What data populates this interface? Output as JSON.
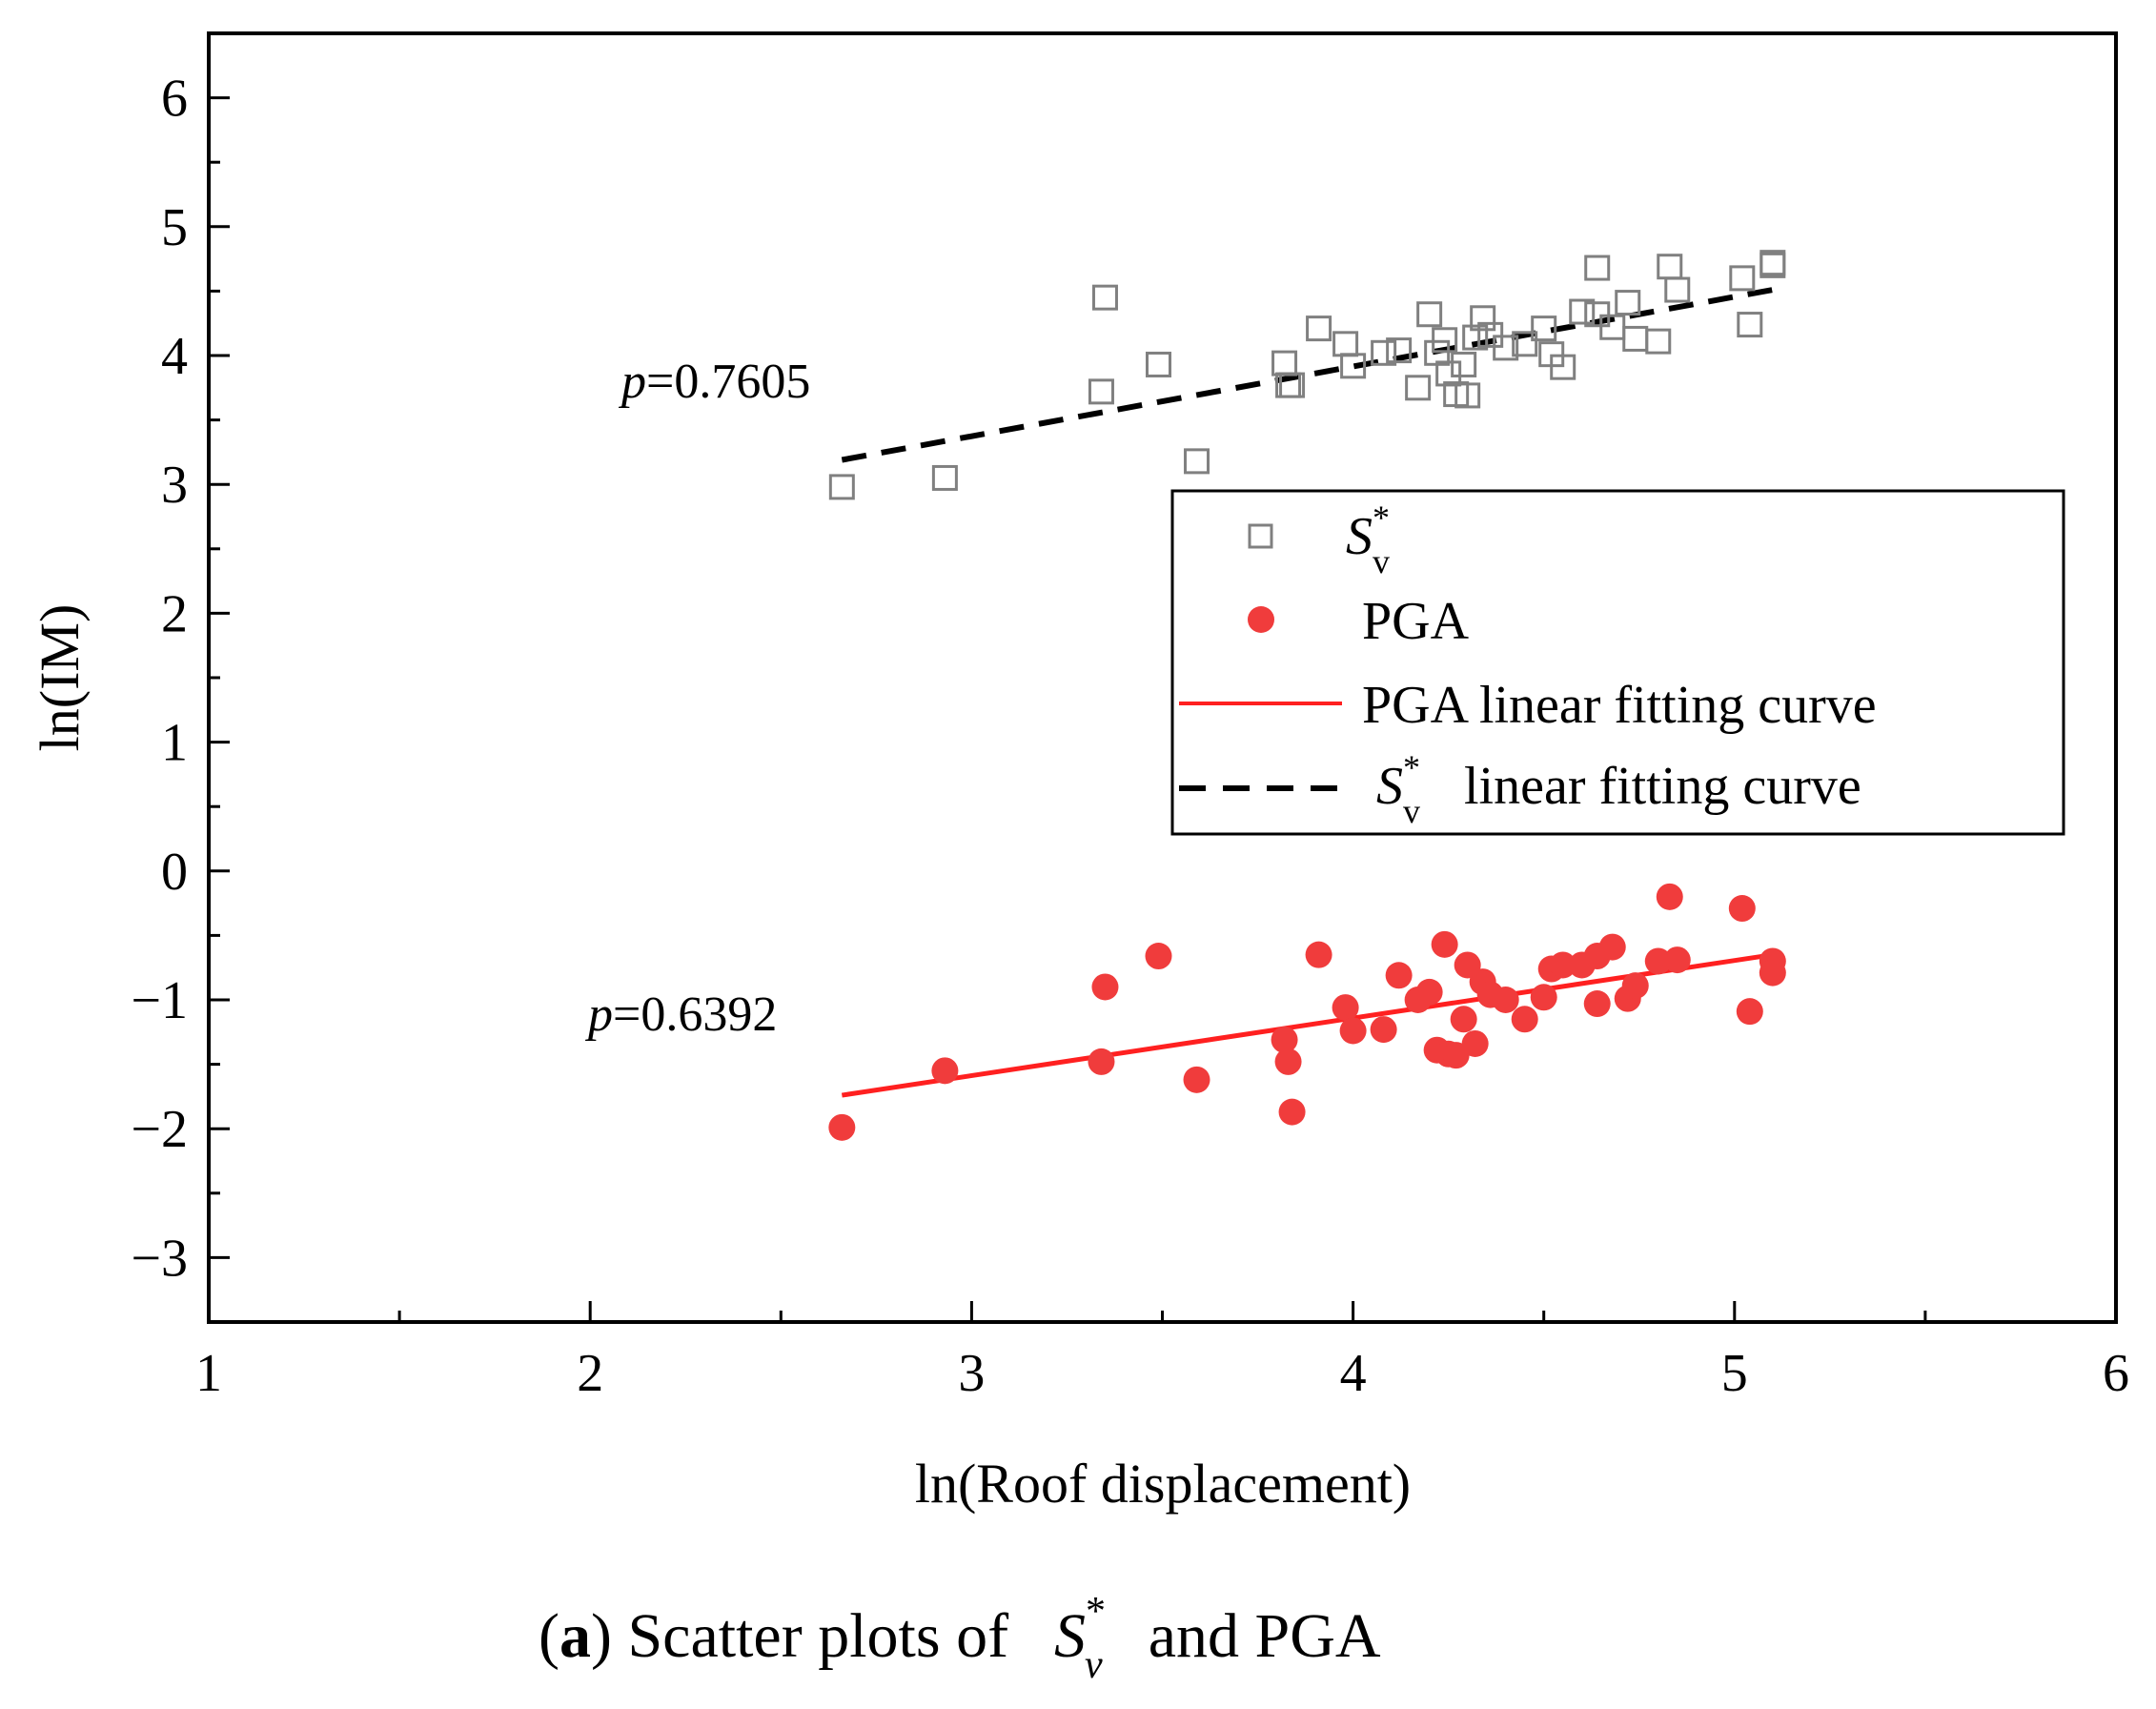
{
  "chart_data": {
    "type": "scatter",
    "xlabel": "ln(Roof displacement)",
    "ylabel": "ln(IM)",
    "xlim": [
      1,
      6
    ],
    "ylim": [
      -3.5,
      6.5
    ],
    "x_ticks": [
      1,
      2,
      3,
      4,
      5,
      6
    ],
    "y_ticks": [
      -3,
      -2,
      -1,
      0,
      1,
      2,
      3,
      4,
      5,
      6
    ],
    "legend_position": "right-middle",
    "series": [
      {
        "name": "Sv*",
        "legend_label": {
          "main": "S",
          "sub": "v",
          "sup": "*"
        },
        "kind": "scatter",
        "marker": "open-square",
        "color": "#808080",
        "points": [
          [
            2.66,
            2.98
          ],
          [
            2.93,
            3.05
          ],
          [
            3.34,
            3.72
          ],
          [
            3.35,
            4.45
          ],
          [
            3.49,
            3.93
          ],
          [
            3.59,
            3.18
          ],
          [
            3.82,
            3.94
          ],
          [
            3.83,
            3.77
          ],
          [
            3.84,
            3.77
          ],
          [
            3.91,
            4.21
          ],
          [
            3.98,
            4.09
          ],
          [
            4.0,
            3.92
          ],
          [
            4.08,
            4.02
          ],
          [
            4.12,
            4.04
          ],
          [
            4.17,
            3.75
          ],
          [
            4.2,
            4.32
          ],
          [
            4.22,
            4.02
          ],
          [
            4.24,
            4.12
          ],
          [
            4.25,
            3.86
          ],
          [
            4.27,
            3.7
          ],
          [
            4.29,
            3.93
          ],
          [
            4.3,
            3.69
          ],
          [
            4.32,
            4.14
          ],
          [
            4.34,
            4.29
          ],
          [
            4.36,
            4.16
          ],
          [
            4.4,
            4.06
          ],
          [
            4.45,
            4.09
          ],
          [
            4.5,
            4.21
          ],
          [
            4.52,
            4.01
          ],
          [
            4.55,
            3.91
          ],
          [
            4.6,
            4.34
          ],
          [
            4.64,
            4.68
          ],
          [
            4.64,
            4.32
          ],
          [
            4.68,
            4.22
          ],
          [
            4.72,
            4.41
          ],
          [
            4.74,
            4.13
          ],
          [
            4.8,
            4.11
          ],
          [
            4.83,
            4.69
          ],
          [
            4.85,
            4.51
          ],
          [
            5.02,
            4.6
          ],
          [
            5.04,
            4.24
          ],
          [
            5.1,
            4.7
          ],
          [
            5.1,
            4.72
          ]
        ]
      },
      {
        "name": "PGA",
        "kind": "scatter",
        "marker": "filled-circle",
        "color": "#f03c3c",
        "points": [
          [
            2.66,
            -1.99
          ],
          [
            2.93,
            -1.55
          ],
          [
            3.34,
            -1.48
          ],
          [
            3.35,
            -0.9
          ],
          [
            3.49,
            -0.66
          ],
          [
            3.59,
            -1.62
          ],
          [
            3.82,
            -1.31
          ],
          [
            3.83,
            -1.48
          ],
          [
            3.84,
            -1.87
          ],
          [
            3.91,
            -0.65
          ],
          [
            3.98,
            -1.06
          ],
          [
            4.0,
            -1.24
          ],
          [
            4.08,
            -1.23
          ],
          [
            4.12,
            -0.81
          ],
          [
            4.17,
            -1.0
          ],
          [
            4.2,
            -0.94
          ],
          [
            4.22,
            -1.39
          ],
          [
            4.24,
            -0.57
          ],
          [
            4.25,
            -1.42
          ],
          [
            4.27,
            -1.43
          ],
          [
            4.29,
            -1.15
          ],
          [
            4.3,
            -0.73
          ],
          [
            4.32,
            -1.34
          ],
          [
            4.34,
            -0.86
          ],
          [
            4.36,
            -0.96
          ],
          [
            4.4,
            -1.0
          ],
          [
            4.45,
            -1.15
          ],
          [
            4.5,
            -0.98
          ],
          [
            4.52,
            -0.76
          ],
          [
            4.55,
            -0.73
          ],
          [
            4.6,
            -0.73
          ],
          [
            4.64,
            -1.03
          ],
          [
            4.64,
            -0.66
          ],
          [
            4.68,
            -0.59
          ],
          [
            4.72,
            -0.99
          ],
          [
            4.74,
            -0.89
          ],
          [
            4.8,
            -0.7
          ],
          [
            4.83,
            -0.2
          ],
          [
            4.85,
            -0.69
          ],
          [
            5.02,
            -0.29
          ],
          [
            5.04,
            -1.09
          ],
          [
            5.1,
            -0.7
          ],
          [
            5.1,
            -0.79
          ]
        ]
      },
      {
        "name": "PGA linear fitting curve",
        "kind": "line",
        "style": "solid",
        "color": "#ff2020",
        "points": [
          [
            2.66,
            -1.74
          ],
          [
            5.1,
            -0.65
          ]
        ]
      },
      {
        "name": "Sv* linear fitting curve",
        "legend_label": {
          "main": "S",
          "sub": "v",
          "sup": "*",
          "rest": "  linear fitting curve"
        },
        "kind": "line",
        "style": "dashed",
        "color": "#000000",
        "points": [
          [
            2.66,
            3.19
          ],
          [
            5.1,
            4.51
          ]
        ]
      }
    ],
    "annotations": [
      {
        "prefix": "p",
        "value": "=0.7605",
        "series": "Sv*"
      },
      {
        "prefix": "p",
        "value": "=0.6392",
        "series": "PGA"
      }
    ]
  },
  "legend": {
    "item_sv": {
      "main": "S",
      "sub": "v",
      "sup": "*"
    },
    "item_pga": "PGA",
    "item_pga_fit": "PGA linear fitting curve",
    "item_sv_fit": {
      "main": "S",
      "sub": "v",
      "sup": "*",
      "rest": "linear fitting curve"
    }
  },
  "caption": {
    "label": "(a)",
    "label_bold": "a",
    "text_before": "Scatter plots of",
    "sv": {
      "main": "S",
      "sub": "v",
      "sup": "*"
    },
    "text_after": "and PGA"
  }
}
